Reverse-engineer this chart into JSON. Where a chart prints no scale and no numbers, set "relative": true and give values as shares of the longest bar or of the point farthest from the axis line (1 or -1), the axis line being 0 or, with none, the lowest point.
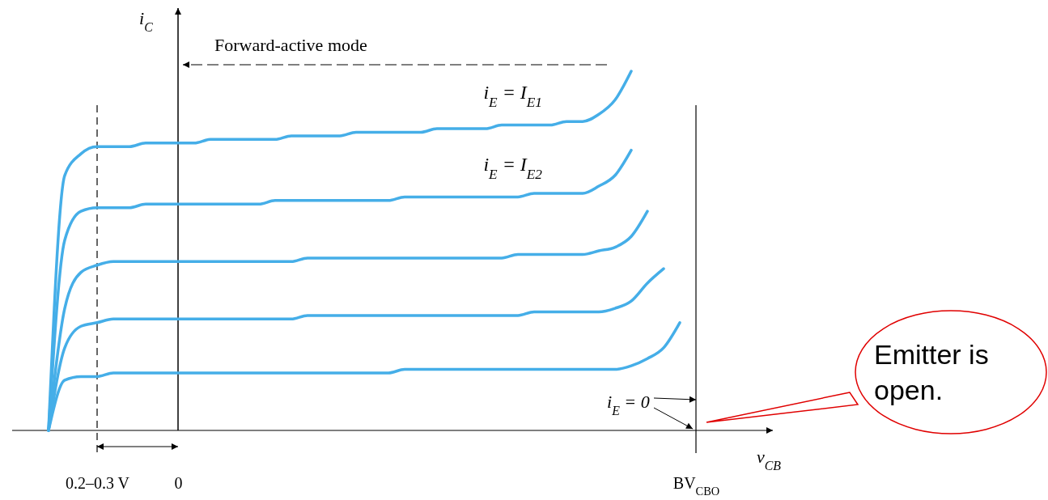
{
  "chart_data": {
    "type": "line",
    "relative": true,
    "xlabel": "v$_{CB}$",
    "ylabel": "i$_{C}$",
    "categories": [
      null,
      null,
      null,
      "0.2–0.3 V",
      null,
      null,
      null,
      null,
      "0",
      null,
      null,
      null,
      null,
      null,
      null,
      null,
      null,
      null,
      null,
      null,
      null,
      null,
      null,
      null,
      null,
      null,
      null,
      null,
      null,
      null,
      null,
      null,
      null,
      null,
      null,
      null,
      null,
      null,
      null,
      null,
      "BV$_{CBO}$",
      null,
      null,
      null,
      null
    ],
    "ref_lines": [
      {
        "axis": "x",
        "value": "0.2–0.3 V",
        "line_style": "dashed",
        "color": "#000000"
      },
      {
        "axis": "x",
        "value": "BV$_{CBO}$",
        "line_style": "solid",
        "color": "#000000"
      }
    ],
    "series": [
      {
        "name": "i$_{E}$ = I$_{E1}$",
        "color": "#45aee8",
        "values": [
          0,
          0.71,
          0.77,
          0.79,
          0.79,
          0.79,
          0.8,
          0.8,
          0.8,
          0.8,
          0.81,
          0.81,
          0.81,
          0.81,
          0.81,
          0.82,
          0.82,
          0.82,
          0.82,
          0.83,
          0.83,
          0.83,
          0.83,
          0.83,
          0.84,
          0.84,
          0.84,
          0.84,
          0.85,
          0.85,
          0.85,
          0.85,
          0.86,
          0.86,
          0.88,
          0.92,
          1,
          null,
          null,
          null,
          null,
          null,
          null,
          null,
          null
        ]
      },
      {
        "name": "i$_{E}$ = I$_{E2}$",
        "color": "#45aee8",
        "values": [
          0,
          0.53,
          0.61,
          0.62,
          0.62,
          0.62,
          0.63,
          0.63,
          0.63,
          0.63,
          0.63,
          0.63,
          0.63,
          0.63,
          0.64,
          0.64,
          0.64,
          0.64,
          0.64,
          0.64,
          0.64,
          0.64,
          0.65,
          0.65,
          0.65,
          0.65,
          0.65,
          0.65,
          0.65,
          0.65,
          0.66,
          0.66,
          0.66,
          0.66,
          0.68,
          0.71,
          0.78,
          null,
          null,
          null,
          null,
          null,
          null,
          null,
          null
        ]
      },
      {
        "color": "#45aee8",
        "values": [
          0,
          0.34,
          0.44,
          0.46,
          0.47,
          0.47,
          0.47,
          0.47,
          0.47,
          0.47,
          0.47,
          0.47,
          0.47,
          0.47,
          0.47,
          0.47,
          0.48,
          0.48,
          0.48,
          0.48,
          0.48,
          0.48,
          0.48,
          0.48,
          0.48,
          0.48,
          0.48,
          0.48,
          0.48,
          0.49,
          0.49,
          0.49,
          0.49,
          0.49,
          0.5,
          0.51,
          0.54,
          0.61,
          null,
          null,
          null,
          null,
          null,
          null,
          null
        ]
      },
      {
        "color": "#45aee8",
        "values": [
          0,
          0.23,
          0.29,
          0.3,
          0.31,
          0.31,
          0.31,
          0.31,
          0.31,
          0.31,
          0.31,
          0.31,
          0.31,
          0.31,
          0.31,
          0.31,
          0.32,
          0.32,
          0.32,
          0.32,
          0.32,
          0.32,
          0.32,
          0.32,
          0.32,
          0.32,
          0.32,
          0.32,
          0.32,
          0.32,
          0.33,
          0.33,
          0.33,
          0.33,
          0.33,
          0.34,
          0.36,
          0.41,
          0.45,
          null,
          null,
          null,
          null,
          null,
          null
        ]
      },
      {
        "color": "#45aee8",
        "values": [
          0,
          0.14,
          0.15,
          0.15,
          0.16,
          0.16,
          0.16,
          0.16,
          0.16,
          0.16,
          0.16,
          0.16,
          0.16,
          0.16,
          0.16,
          0.16,
          0.16,
          0.16,
          0.16,
          0.16,
          0.16,
          0.16,
          0.17,
          0.17,
          0.17,
          0.17,
          0.17,
          0.17,
          0.17,
          0.17,
          0.17,
          0.17,
          0.17,
          0.17,
          0.17,
          0.17,
          0.18,
          0.2,
          0.23,
          0.3,
          null,
          null,
          null,
          null,
          null
        ]
      }
    ],
    "annotations": [
      "Forward-active mode",
      {
        "text": "i$_{E}$ = 0",
        "x": "BV$_{CBO}$",
        "y": 0
      },
      "Emitter is open."
    ]
  }
}
